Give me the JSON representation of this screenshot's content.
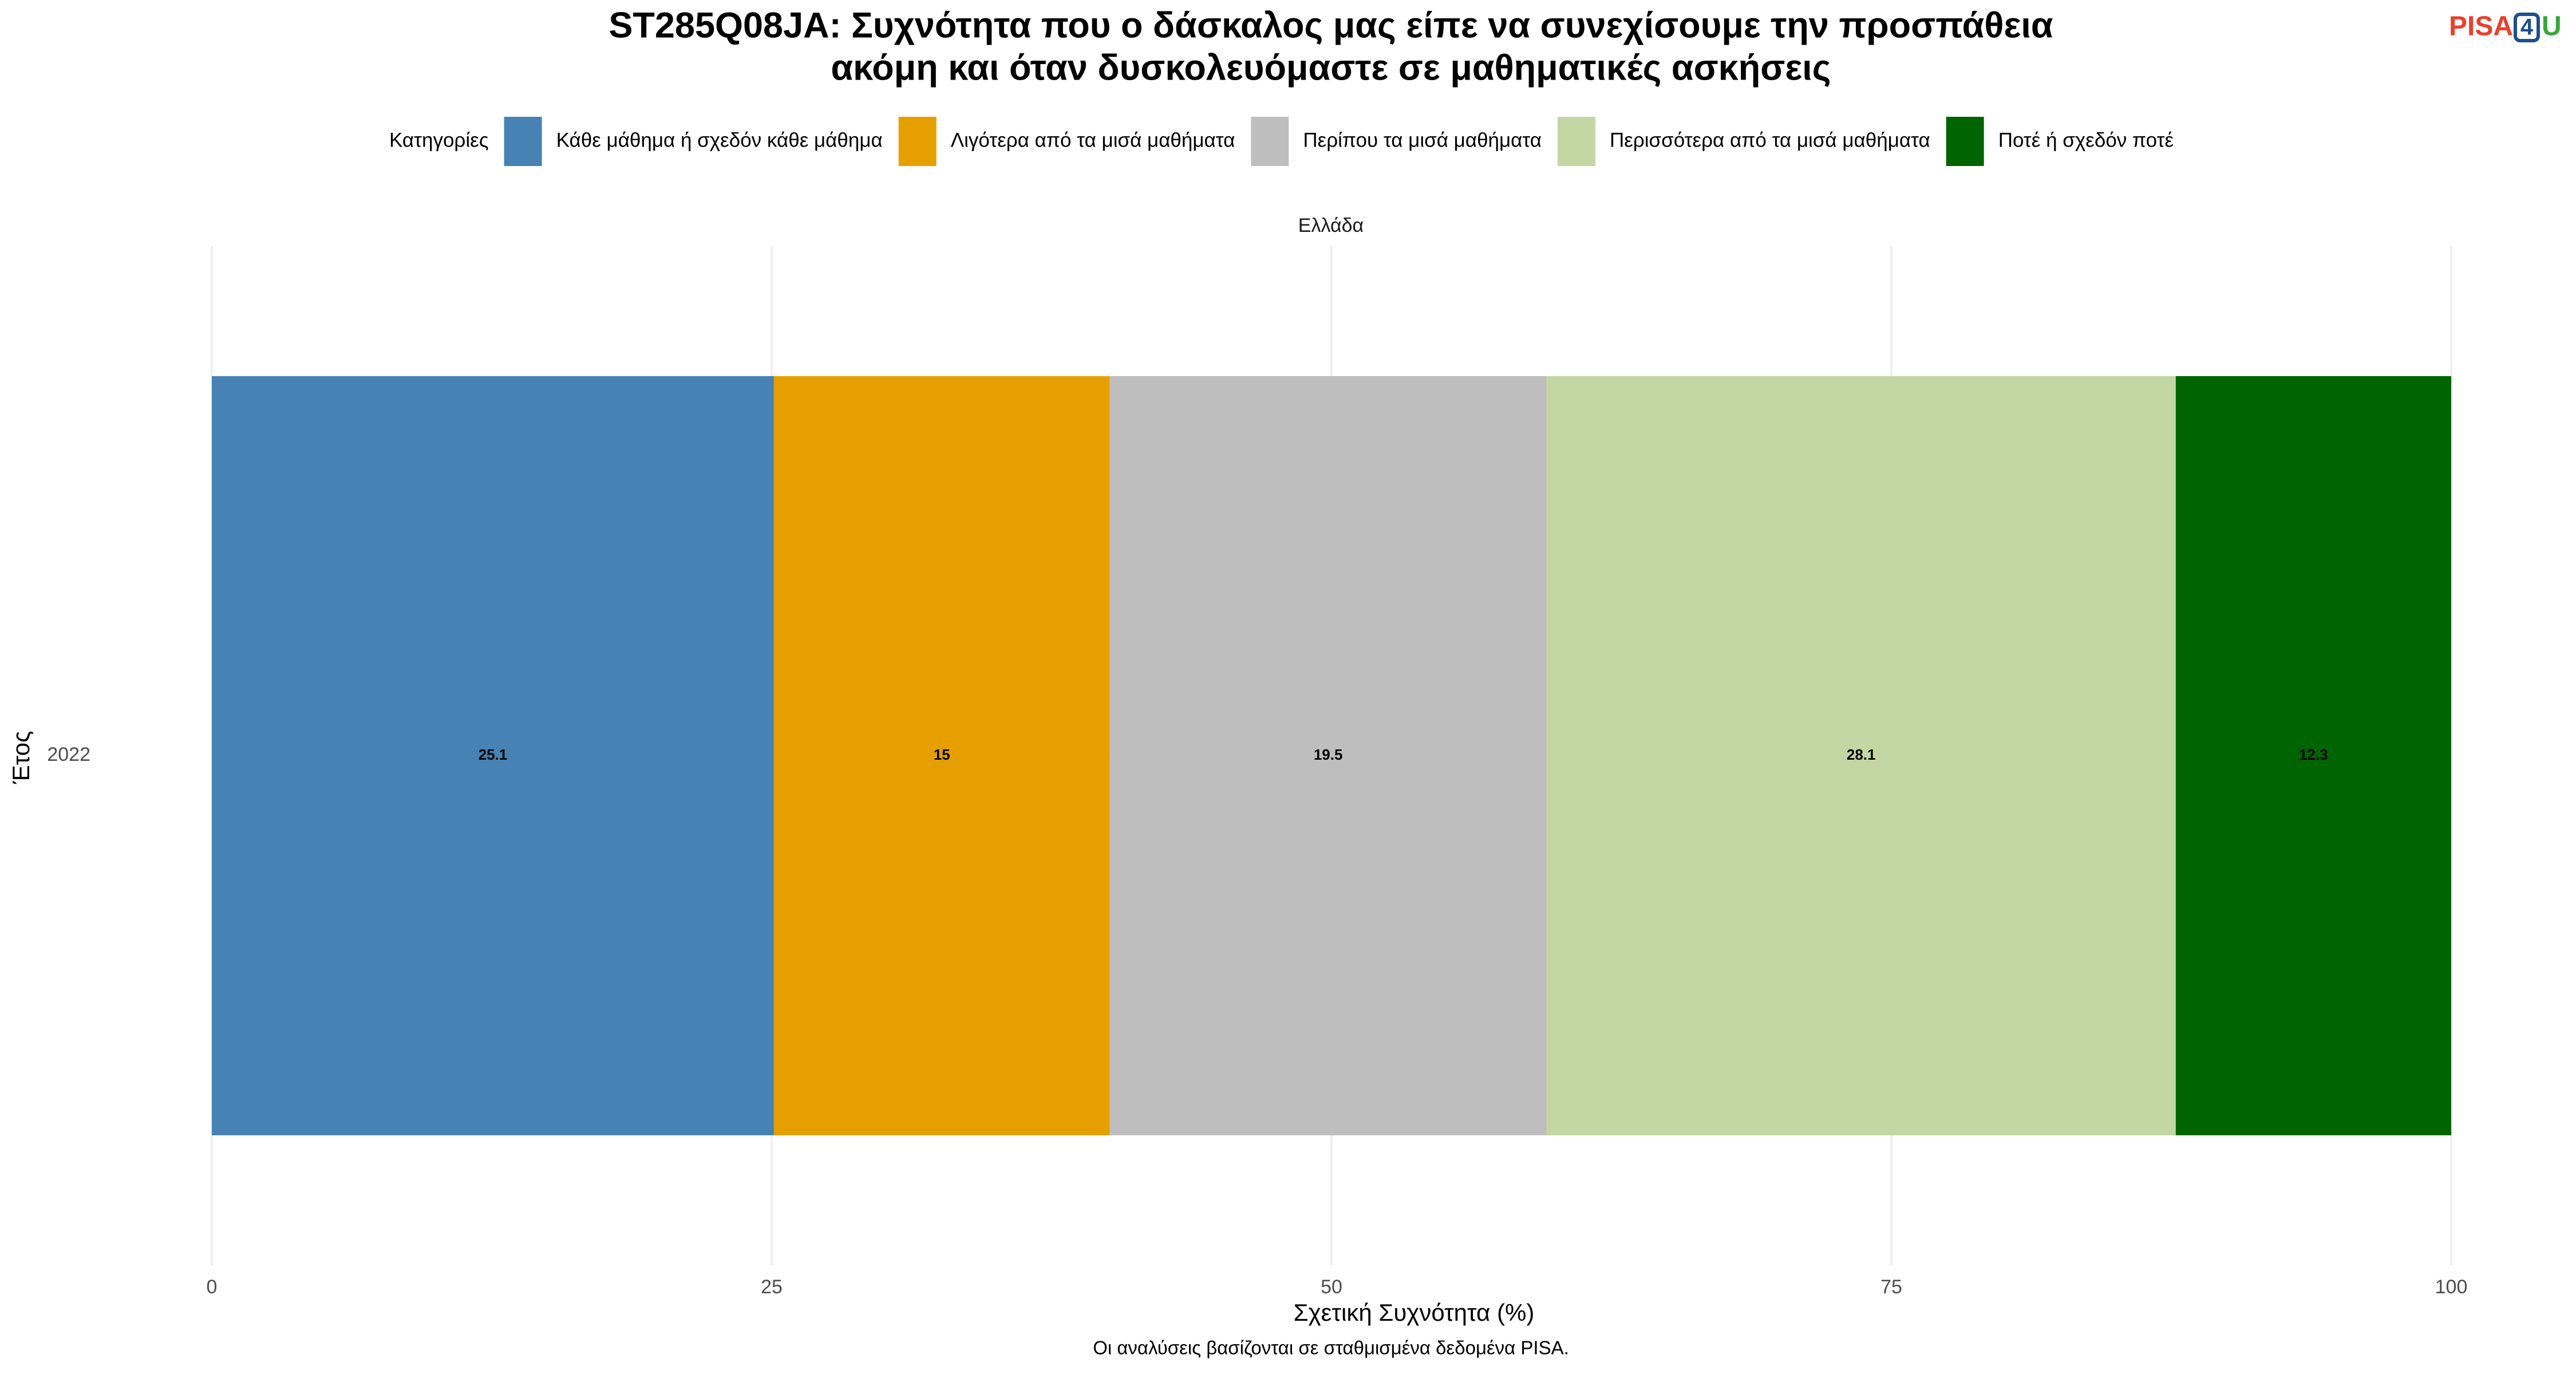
{
  "logo": [
    "PISA",
    "4",
    "U"
  ],
  "chart_data": {
    "type": "stacked_bar",
    "orientation": "horizontal",
    "title": [
      "ST285Q08JA: Συχνότητα που ο δάσκαλος μας είπε να συνεχίσουμε την προσπάθεια",
      "ακόμη και όταν δυσκολευόμαστε σε μαθηματικές ασκήσεις"
    ],
    "legend_title": "Κατηγορίες",
    "legend_position": "top",
    "facet": "Ελλάδα",
    "categories": [
      "2022"
    ],
    "series": [
      {
        "name": "Κάθε μάθημα ή σχεδόν κάθε μάθημα",
        "color": "#4682b4",
        "values": [
          25.1
        ]
      },
      {
        "name": "Λιγότερα από τα μισά μαθήματα",
        "color": "#e69f00",
        "values": [
          15
        ]
      },
      {
        "name": "Περίπου τα μισά μαθήματα",
        "color": "#bebebe",
        "values": [
          19.5
        ]
      },
      {
        "name": "Περισσότερα από τα μισά μαθήματα",
        "color": "#c3d7a4",
        "values": [
          28.1
        ]
      },
      {
        "name": "Ποτέ ή σχεδόν ποτέ",
        "color": "#006400",
        "values": [
          12.3
        ]
      }
    ],
    "xlim": [
      0,
      100
    ],
    "xticks": [
      0,
      25,
      50,
      75,
      100
    ],
    "grid": true,
    "xlabel": "Σχετική Συχνότητα (%)",
    "ylabel": "Έτος",
    "caption": "Οι αναλύσεις βασίζονται σε σταθμισμένα δεδομένα PISA."
  }
}
